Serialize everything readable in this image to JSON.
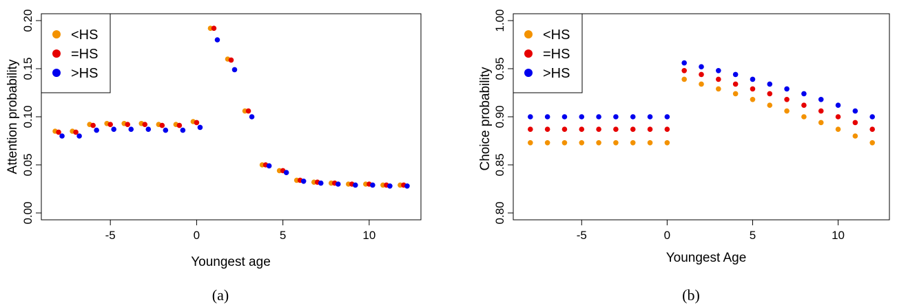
{
  "chart_data": [
    {
      "type": "scatter",
      "caption": "(a)",
      "xlabel": "Youngest age",
      "ylabel": "Attention probability",
      "xlim": [
        -9,
        13
      ],
      "ylim": [
        0,
        0.2
      ],
      "x_ticks": [
        -5,
        0,
        5,
        10
      ],
      "x_tick_labels": [
        "-5",
        "0",
        "5",
        "10"
      ],
      "y_ticks": [
        0,
        0.05,
        0.1,
        0.15,
        0.2
      ],
      "y_tick_labels": [
        "0.00",
        "0.05",
        "0.10",
        "0.15",
        "0.20"
      ],
      "legend_position": "top-left",
      "x_offset": 0.2,
      "series": [
        {
          "name": "<HS",
          "color": "#f39200",
          "x": [
            -8,
            -7,
            -6,
            -5,
            -4,
            -3,
            -2,
            -1,
            0,
            1,
            2,
            3,
            4,
            5,
            6,
            7,
            8,
            9,
            10,
            11,
            12
          ],
          "values": [
            0.085,
            0.085,
            0.092,
            0.093,
            0.093,
            0.093,
            0.092,
            0.092,
            0.095,
            0.192,
            0.16,
            0.106,
            0.05,
            0.044,
            0.034,
            0.032,
            0.031,
            0.03,
            0.03,
            0.029,
            0.029
          ]
        },
        {
          "name": "=HS",
          "color": "#e60000",
          "x": [
            -8,
            -7,
            -6,
            -5,
            -4,
            -3,
            -2,
            -1,
            0,
            1,
            2,
            3,
            4,
            5,
            6,
            7,
            8,
            9,
            10,
            11,
            12
          ],
          "values": [
            0.084,
            0.084,
            0.091,
            0.092,
            0.092,
            0.092,
            0.091,
            0.091,
            0.094,
            0.192,
            0.159,
            0.106,
            0.05,
            0.044,
            0.034,
            0.032,
            0.031,
            0.03,
            0.03,
            0.029,
            0.029
          ]
        },
        {
          "name": ">HS",
          "color": "#0000ee",
          "x": [
            -8,
            -7,
            -6,
            -5,
            -4,
            -3,
            -2,
            -1,
            0,
            1,
            2,
            3,
            4,
            5,
            6,
            7,
            8,
            9,
            10,
            11,
            12
          ],
          "values": [
            0.08,
            0.08,
            0.086,
            0.087,
            0.087,
            0.087,
            0.086,
            0.086,
            0.089,
            0.18,
            0.149,
            0.1,
            0.049,
            0.042,
            0.033,
            0.031,
            0.03,
            0.029,
            0.029,
            0.028,
            0.028
          ]
        }
      ]
    },
    {
      "type": "scatter",
      "caption": "(b)",
      "xlabel": "Youngest Age",
      "ylabel": "Choice probability",
      "xlim": [
        -9,
        13
      ],
      "ylim": [
        0.8,
        1.0
      ],
      "x_ticks": [
        -5,
        0,
        5,
        10
      ],
      "x_tick_labels": [
        "-5",
        "0",
        "5",
        "10"
      ],
      "y_ticks": [
        0.8,
        0.85,
        0.9,
        0.95,
        1.0
      ],
      "y_tick_labels": [
        "0.80",
        "0.85",
        "0.90",
        "0.95",
        "1.00"
      ],
      "legend_position": "top-left",
      "x_offset": 0,
      "series": [
        {
          "name": "<HS",
          "color": "#f39200",
          "x": [
            -8,
            -7,
            -6,
            -5,
            -4,
            -3,
            -2,
            -1,
            0,
            1,
            2,
            3,
            4,
            5,
            6,
            7,
            8,
            9,
            10,
            11,
            12
          ],
          "values": [
            0.873,
            0.873,
            0.873,
            0.873,
            0.873,
            0.873,
            0.873,
            0.873,
            0.873,
            0.939,
            0.934,
            0.929,
            0.924,
            0.918,
            0.912,
            0.906,
            0.9,
            0.894,
            0.887,
            0.88,
            0.873
          ]
        },
        {
          "name": "=HS",
          "color": "#e60000",
          "x": [
            -8,
            -7,
            -6,
            -5,
            -4,
            -3,
            -2,
            -1,
            0,
            1,
            2,
            3,
            4,
            5,
            6,
            7,
            8,
            9,
            10,
            11,
            12
          ],
          "values": [
            0.887,
            0.887,
            0.887,
            0.887,
            0.887,
            0.887,
            0.887,
            0.887,
            0.887,
            0.948,
            0.944,
            0.939,
            0.934,
            0.929,
            0.924,
            0.918,
            0.912,
            0.906,
            0.9,
            0.894,
            0.887
          ]
        },
        {
          "name": ">HS",
          "color": "#0000ee",
          "x": [
            -8,
            -7,
            -6,
            -5,
            -4,
            -3,
            -2,
            -1,
            0,
            1,
            2,
            3,
            4,
            5,
            6,
            7,
            8,
            9,
            10,
            11,
            12
          ],
          "values": [
            0.9,
            0.9,
            0.9,
            0.9,
            0.9,
            0.9,
            0.9,
            0.9,
            0.9,
            0.956,
            0.952,
            0.948,
            0.944,
            0.939,
            0.934,
            0.929,
            0.924,
            0.918,
            0.912,
            0.906,
            0.9
          ]
        }
      ]
    }
  ]
}
